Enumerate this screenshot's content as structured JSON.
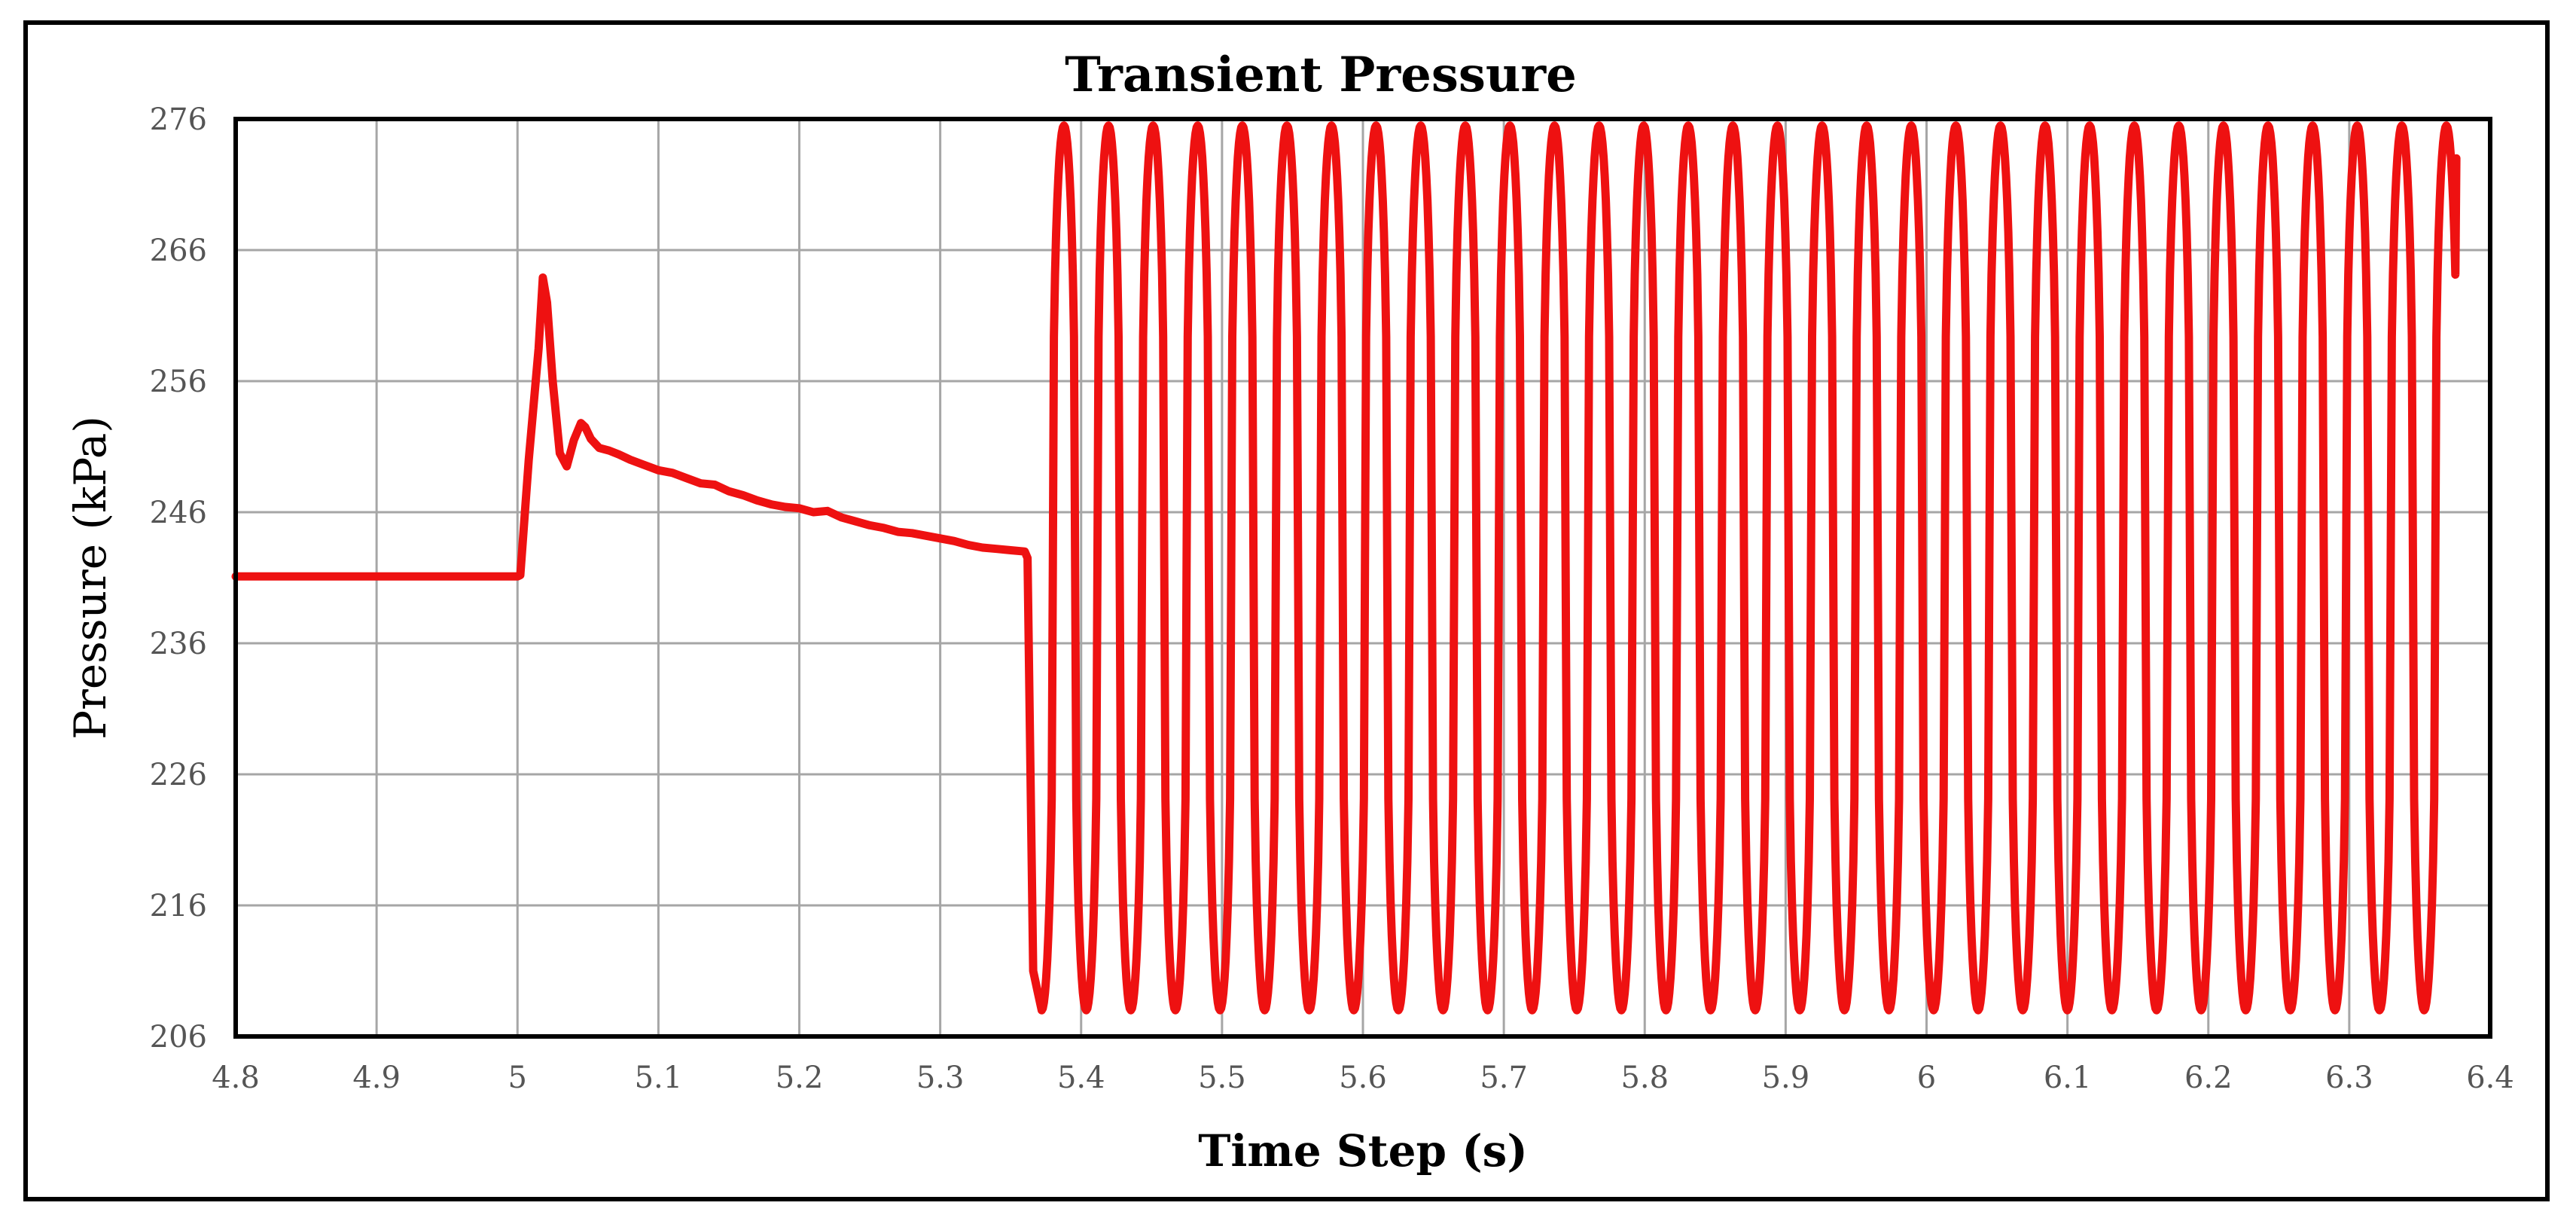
{
  "chart_data": {
    "type": "line",
    "title": "Transient Pressure",
    "xlabel": "Time Step (s)",
    "ylabel": "Pressure (kPa)",
    "xlim": [
      4.8,
      6.4
    ],
    "ylim": [
      206,
      276
    ],
    "x_ticks": [
      "4.8",
      "4.9",
      "5",
      "5.1",
      "5.2",
      "5.3",
      "5.4",
      "5.5",
      "5.6",
      "5.7",
      "5.8",
      "5.9",
      "6",
      "6.1",
      "6.2",
      "6.3",
      "6.4"
    ],
    "y_ticks": [
      "276",
      "266",
      "256",
      "246",
      "236",
      "226",
      "216",
      "206"
    ],
    "grid": true,
    "legend": false,
    "colors": {
      "series": "#ee1111"
    },
    "series": [
      {
        "x": [
          4.8,
          4.85,
          4.9,
          4.95,
          5.0,
          5.002,
          5.008,
          5.015,
          5.018,
          5.021,
          5.025,
          5.03,
          5.035,
          5.04,
          5.045,
          5.048,
          5.052,
          5.058,
          5.065,
          5.072,
          5.08,
          5.09,
          5.1,
          5.11,
          5.12,
          5.13,
          5.14,
          5.15,
          5.16,
          5.17,
          5.18,
          5.19,
          5.2,
          5.21,
          5.22,
          5.23,
          5.24,
          5.25,
          5.26,
          5.27,
          5.28,
          5.29,
          5.3,
          5.31,
          5.32,
          5.33,
          5.34,
          5.35,
          5.36
        ],
        "y": [
          241.1,
          241.1,
          241.1,
          241.1,
          241.1,
          241.2,
          250.0,
          258.5,
          263.9,
          262.0,
          256.0,
          250.5,
          249.5,
          251.5,
          252.8,
          252.5,
          251.6,
          250.9,
          250.7,
          250.4,
          250.0,
          249.6,
          249.2,
          249.0,
          248.6,
          248.2,
          248.1,
          247.6,
          247.3,
          246.9,
          246.6,
          246.4,
          246.3,
          246.0,
          246.1,
          245.6,
          245.3,
          245.0,
          244.8,
          244.5,
          244.4,
          244.2,
          244.0,
          243.8,
          243.5,
          243.3,
          243.2,
          243.1,
          243.0
        ],
        "oscillation": {
          "drop_start": 5.362,
          "drop_end": 5.366,
          "first_trough_x": 5.372,
          "period": 0.03165,
          "min": 208,
          "max": 275.5,
          "end_x": 6.376,
          "end_y": 273
        }
      }
    ]
  }
}
